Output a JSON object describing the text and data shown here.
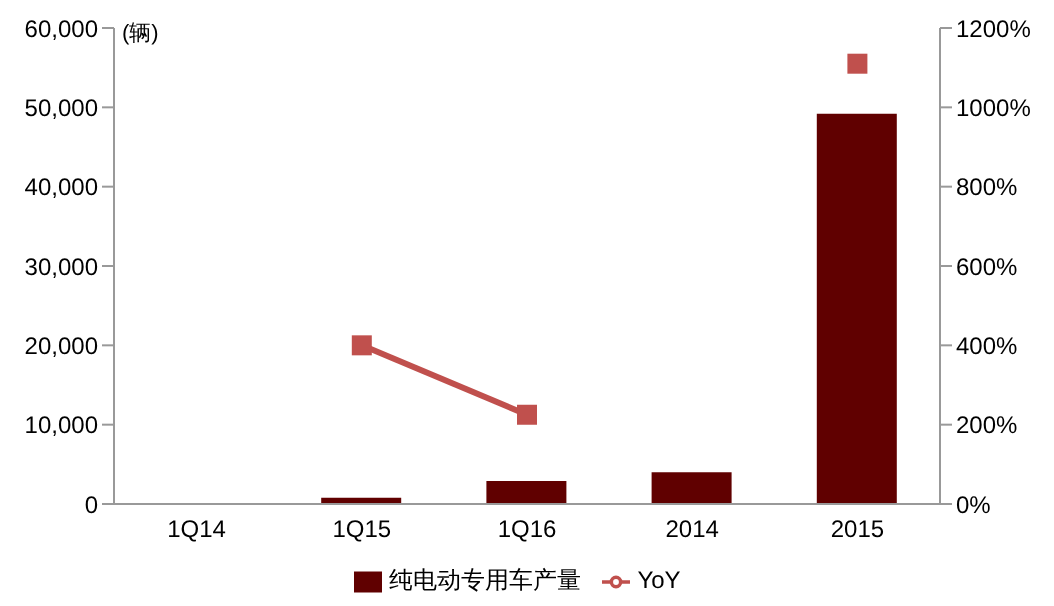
{
  "chart_data": {
    "type": "bar",
    "ylabel": "(辆)",
    "categories": [
      "1Q14",
      "1Q15",
      "1Q16",
      "2014",
      "2015"
    ],
    "series": [
      {
        "name": "纯电动专用车产量",
        "color": "#600000",
        "values": [
          100,
          800,
          2900,
          4000,
          49200
        ]
      },
      {
        "name": "YoY",
        "type": "line",
        "axis": "y2",
        "color": "#c0504d",
        "marker": "square",
        "values": [
          null,
          400,
          225,
          null,
          1110
        ]
      }
    ],
    "ylim": [
      0,
      60000
    ],
    "yticks": [
      {
        "value": 0,
        "label": "0"
      },
      {
        "value": 10000,
        "label": "10,000"
      },
      {
        "value": 20000,
        "label": "20,000"
      },
      {
        "value": 30000,
        "label": "30,000"
      },
      {
        "value": 40000,
        "label": "40,000"
      },
      {
        "value": 50000,
        "label": "50,000"
      },
      {
        "value": 60000,
        "label": "60,000"
      }
    ],
    "y2lim": [
      0,
      1200
    ],
    "y2ticks": [
      {
        "value": 0,
        "label": "0%"
      },
      {
        "value": 200,
        "label": "200%"
      },
      {
        "value": 400,
        "label": "400%"
      },
      {
        "value": 600,
        "label": "600%"
      },
      {
        "value": 800,
        "label": "800%"
      },
      {
        "value": 1000,
        "label": "1000%"
      },
      {
        "value": 1200,
        "label": "1200%"
      }
    ],
    "grid": false,
    "legend": "bottom"
  }
}
